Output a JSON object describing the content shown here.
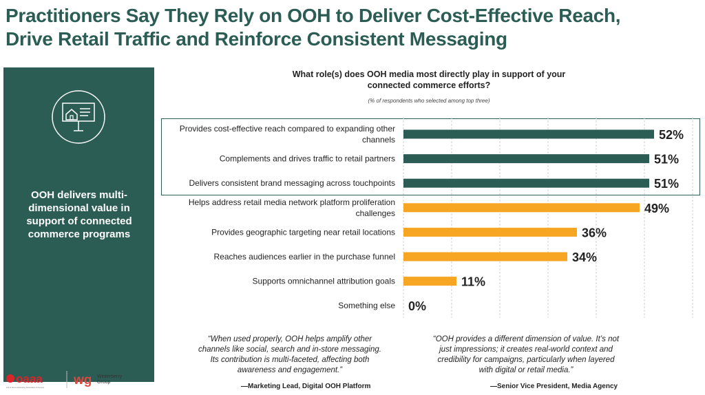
{
  "title": {
    "line1": "Practitioners Say They Rely on OOH to Deliver Cost-Effective Reach,",
    "line2": "Drive Retail Traffic and Reinforce Consistent Messaging"
  },
  "sidebar": {
    "text": "OOH delivers multi-dimensional value in support of connected commerce programs",
    "icon": "billboard-icon"
  },
  "chart_data": {
    "type": "bar",
    "orientation": "horizontal",
    "title_line1": "What role(s) does OOH media most directly play in support of your",
    "title_line2": "connected commerce efforts?",
    "subtitle": "(% of respondents who selected among top three)",
    "categories": [
      "Provides cost-effective reach compared to expanding other channels",
      "Complements and drives traffic to retail partners",
      "Delivers consistent brand messaging across touchpoints",
      "Helps address retail media network platform proliferation challenges",
      "Provides geographic targeting near retail locations",
      "Reaches audiences earlier in the purchase funnel",
      "Supports omnichannel attribution goals",
      "Something else"
    ],
    "category_lines": [
      [
        "Provides cost-effective reach compared to expanding other",
        "channels"
      ],
      [
        "Complements and drives traffic to retail partners"
      ],
      [
        "Delivers consistent brand messaging across touchpoints"
      ],
      [
        "Helps address retail media network platform proliferation",
        "challenges"
      ],
      [
        "Provides geographic targeting near retail locations"
      ],
      [
        "Reaches audiences earlier in the purchase funnel"
      ],
      [
        "Supports omnichannel attribution goals"
      ],
      [
        "Something else"
      ]
    ],
    "values": [
      52,
      51,
      51,
      49,
      36,
      34,
      11,
      0
    ],
    "value_labels": [
      "52%",
      "51%",
      "51%",
      "49%",
      "36%",
      "34%",
      "11%",
      "0%"
    ],
    "highlighted": [
      true,
      true,
      true,
      false,
      false,
      false,
      false,
      false
    ],
    "xlim": [
      0,
      60
    ],
    "grid": true,
    "colors": {
      "highlight": "#2b5d55",
      "other": "#f6a623",
      "grid": "#d0d0d0"
    }
  },
  "quotes": [
    {
      "lines": [
        "“When used properly, OOH helps amplify other",
        "channels like social, search and in-store messaging.",
        "Its contribution is multi-faceted, affecting both",
        "awareness and engagement.”"
      ],
      "attribution": "—Marketing Lead, Digital OOH Platform"
    },
    {
      "lines": [
        "“OOH provides a different dimension of value. It’s not",
        "just impressions; it creates real-world context and",
        "credibility for campaigns, particularly when layered",
        "with digital or retail media.”"
      ],
      "attribution": "—Senior Vice President, Media Agency"
    }
  ],
  "footer": {
    "oaaa_logo": "oaaa",
    "oaaa_tagline": "Out of Home Advertising Association of America",
    "wg_logo": "wg",
    "wg_name_line1": "Winterberry",
    "wg_name_line2": "Group"
  }
}
